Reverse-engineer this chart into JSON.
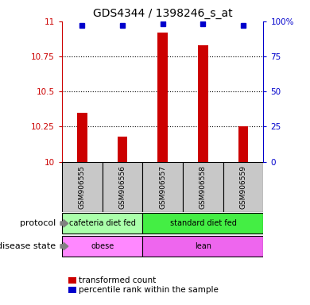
{
  "title": "GDS4344 / 1398246_s_at",
  "samples": [
    "GSM906555",
    "GSM906556",
    "GSM906557",
    "GSM906558",
    "GSM906559"
  ],
  "bar_values": [
    10.35,
    10.18,
    10.92,
    10.83,
    10.25
  ],
  "percentile_values": [
    97,
    97,
    98,
    98,
    97
  ],
  "bar_color": "#cc0000",
  "dot_color": "#0000cc",
  "ylim_left": [
    10,
    11
  ],
  "ylim_right": [
    0,
    100
  ],
  "yticks_left": [
    10,
    10.25,
    10.5,
    10.75,
    11
  ],
  "yticks_right": [
    0,
    25,
    50,
    75,
    100
  ],
  "ytick_labels_right": [
    "0",
    "25",
    "50",
    "75",
    "100%"
  ],
  "protocol_groups": [
    {
      "label": "cafeteria diet fed",
      "samples": [
        0,
        1
      ],
      "color": "#aaffaa"
    },
    {
      "label": "standard diet fed",
      "samples": [
        2,
        3,
        4
      ],
      "color": "#44ee44"
    }
  ],
  "disease_groups": [
    {
      "label": "obese",
      "samples": [
        0,
        1
      ],
      "color": "#ff88ff"
    },
    {
      "label": "lean",
      "samples": [
        2,
        3,
        4
      ],
      "color": "#ee66ee"
    }
  ],
  "protocol_label": "protocol",
  "disease_label": "disease state",
  "legend_bar_label": "transformed count",
  "legend_dot_label": "percentile rank within the sample",
  "sample_box_color": "#c8c8c8",
  "background_color": "#ffffff",
  "bar_width": 0.25
}
